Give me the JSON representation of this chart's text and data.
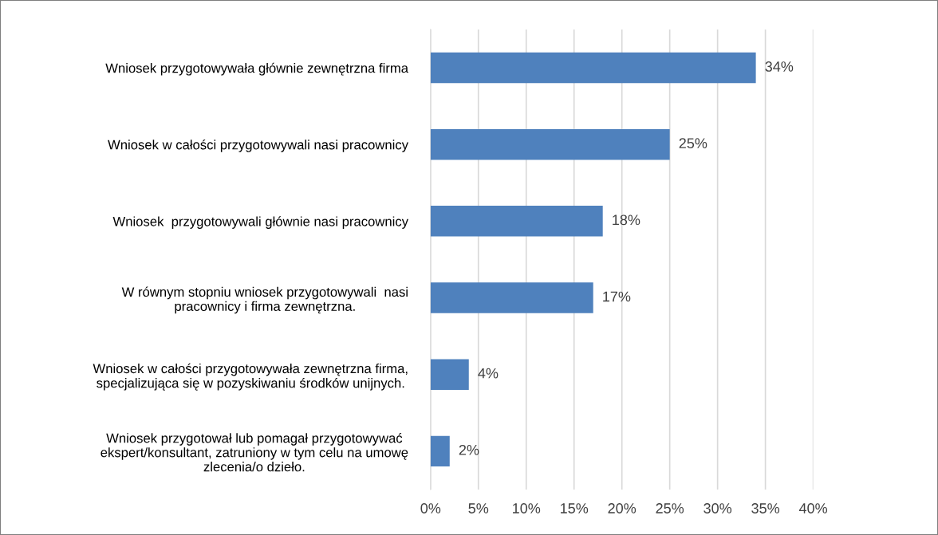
{
  "chart_data": {
    "type": "bar",
    "orientation": "horizontal",
    "categories": [
      "Wniosek przygotowywała głównie zewnętrzna firma",
      "Wniosek w całości przygotowywali nasi pracownicy",
      "Wniosek  przygotowywali głównie nasi pracownicy",
      "W równym stopniu wniosek przygotowywali  nasi\npracownicy i firma zewnętrzna.",
      "Wniosek w całości przygotowywała zewnętrzna firma,\nspecjalizująca się w pozyskiwaniu środków unijnych.",
      "Wniosek przygotował lub pomagał przygotowywać\nekspert/konsultant, zatruniony w tym celu na umowę\nzlecenia/o dzieło."
    ],
    "values": [
      34,
      25,
      18,
      17,
      4,
      2
    ],
    "color": "#4f81bd",
    "value_labels": [
      "34%",
      "25%",
      "18%",
      "17%",
      "4%",
      "2%"
    ],
    "xlim": [
      0,
      40
    ],
    "xticks": [
      {
        "value": 0,
        "label": "0%"
      },
      {
        "value": 5,
        "label": "5%"
      },
      {
        "value": 10,
        "label": "10%"
      },
      {
        "value": 15,
        "label": "15%"
      },
      {
        "value": 20,
        "label": "20%"
      },
      {
        "value": 25,
        "label": "25%"
      },
      {
        "value": 30,
        "label": "30%"
      },
      {
        "value": 35,
        "label": "35%"
      },
      {
        "value": 40,
        "label": "40%"
      }
    ],
    "grid": "x"
  }
}
